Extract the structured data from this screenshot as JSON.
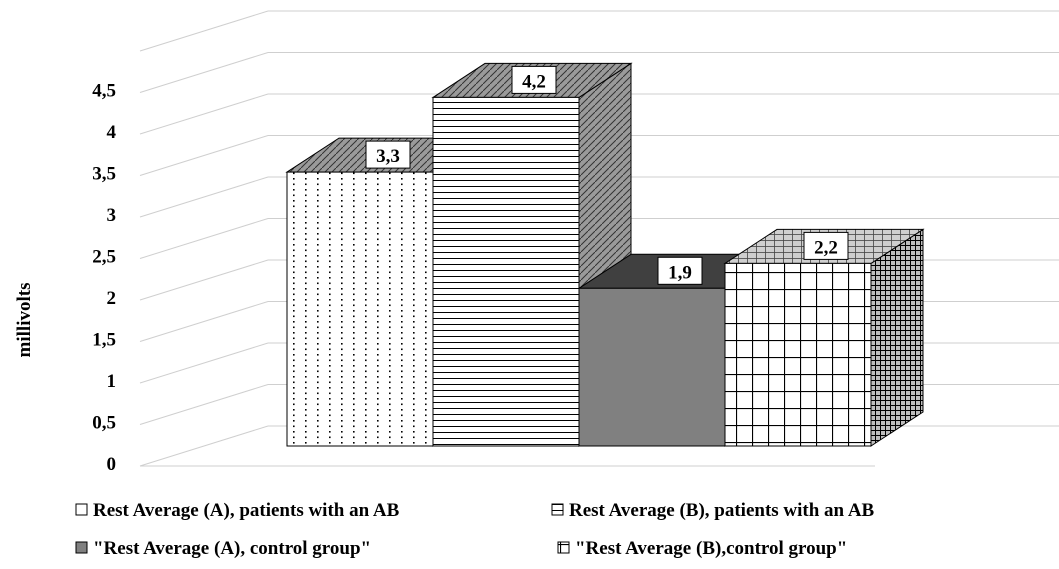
{
  "chart_data": {
    "type": "bar",
    "subtype": "3d-clustered",
    "title": "",
    "xlabel": "",
    "ylabel": "millivolts",
    "ylim": [
      0,
      4.5
    ],
    "yticks": [
      "0",
      "0,5",
      "1",
      "1,5",
      "2",
      "2,5",
      "3",
      "3,5",
      "4",
      "4,5"
    ],
    "grid": true,
    "legend_position": "bottom",
    "series": [
      {
        "name": "Rest Average  (A), patients with an AB",
        "value": 3.3,
        "label": "3,3",
        "pattern": "dots",
        "color": "#ffffff"
      },
      {
        "name": "Rest Average  (B), patients with an AB",
        "value": 4.2,
        "label": "4,2",
        "pattern": "horizontal-lines",
        "color": "#ffffff"
      },
      {
        "name": "\"Rest Average  (A), control group\"",
        "value": 1.9,
        "label": "1,9",
        "pattern": "solid",
        "color": "#7f7f7f"
      },
      {
        "name": "\"Rest Average  (B),control group\"",
        "value": 2.2,
        "label": "2,2",
        "pattern": "grid",
        "color": "#ffffff"
      }
    ]
  }
}
